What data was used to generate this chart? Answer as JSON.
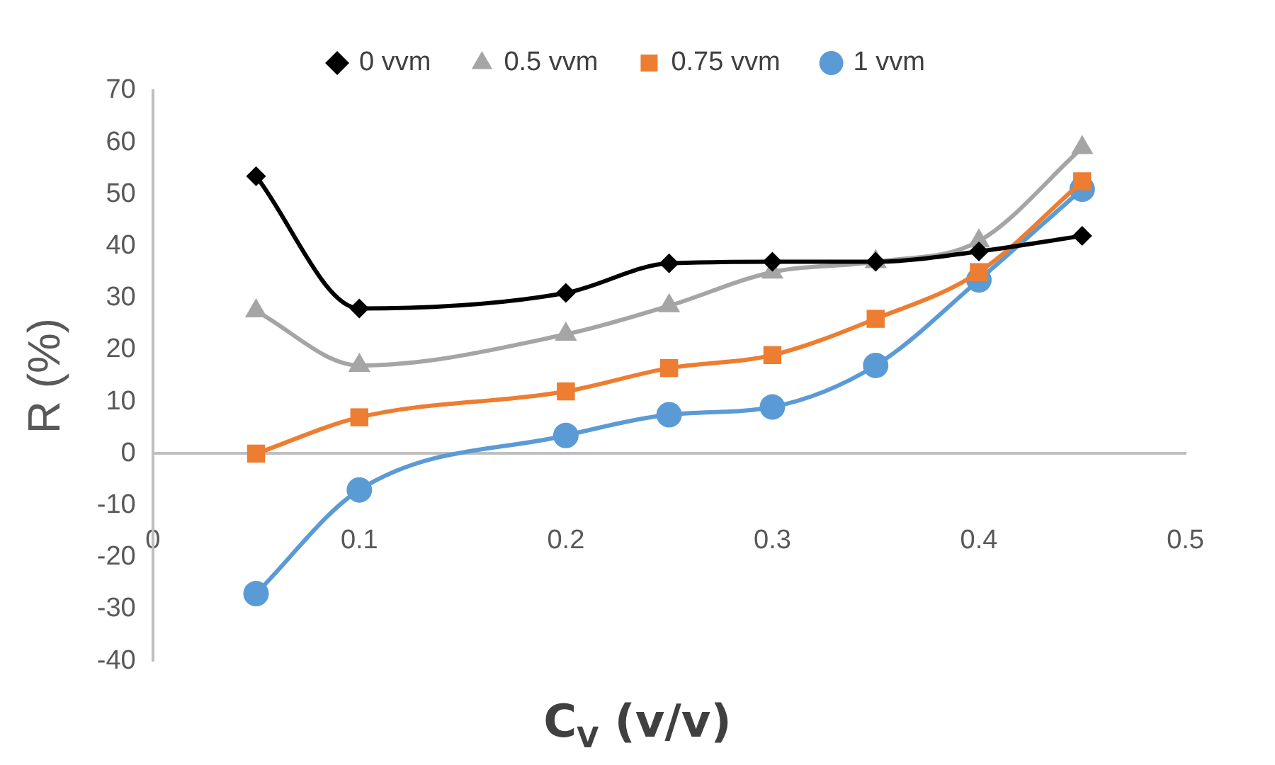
{
  "chart_data": {
    "type": "line",
    "xlabel": "C$_{V}$ (v/v)",
    "ylabel": "R (%)",
    "x": [
      0.05,
      0.1,
      0.2,
      0.25,
      0.3,
      0.35,
      0.4,
      0.45
    ],
    "xlim": [
      0,
      0.5
    ],
    "xticks": [
      0,
      0.1,
      0.2,
      0.3,
      0.4,
      0.5
    ],
    "ylim": [
      -40,
      70
    ],
    "yticks": [
      -40,
      -30,
      -20,
      -10,
      0,
      10,
      20,
      30,
      40,
      50,
      60,
      70
    ],
    "legend": "top",
    "line_style": "solid",
    "series": [
      {
        "name": "0 vvm",
        "color": "#000000",
        "marker": "diamond",
        "values": [
          53.5,
          28,
          31,
          36.7,
          37,
          37,
          39,
          42
        ]
      },
      {
        "name": "0.5 vvm",
        "color": "#a5a5a5",
        "marker": "triangle",
        "values": [
          27.5,
          17,
          23,
          28.5,
          35,
          37,
          41,
          59
        ]
      },
      {
        "name": "0.75 vvm",
        "color": "#ed7d31",
        "marker": "square",
        "values": [
          0,
          7,
          12,
          16.5,
          19,
          26,
          35,
          52.5
        ]
      },
      {
        "name": "1 vvm",
        "color": "#5b9bd5",
        "marker": "circle",
        "values": [
          -27,
          -7,
          3.5,
          7.5,
          9,
          17,
          33.5,
          51
        ]
      }
    ]
  }
}
